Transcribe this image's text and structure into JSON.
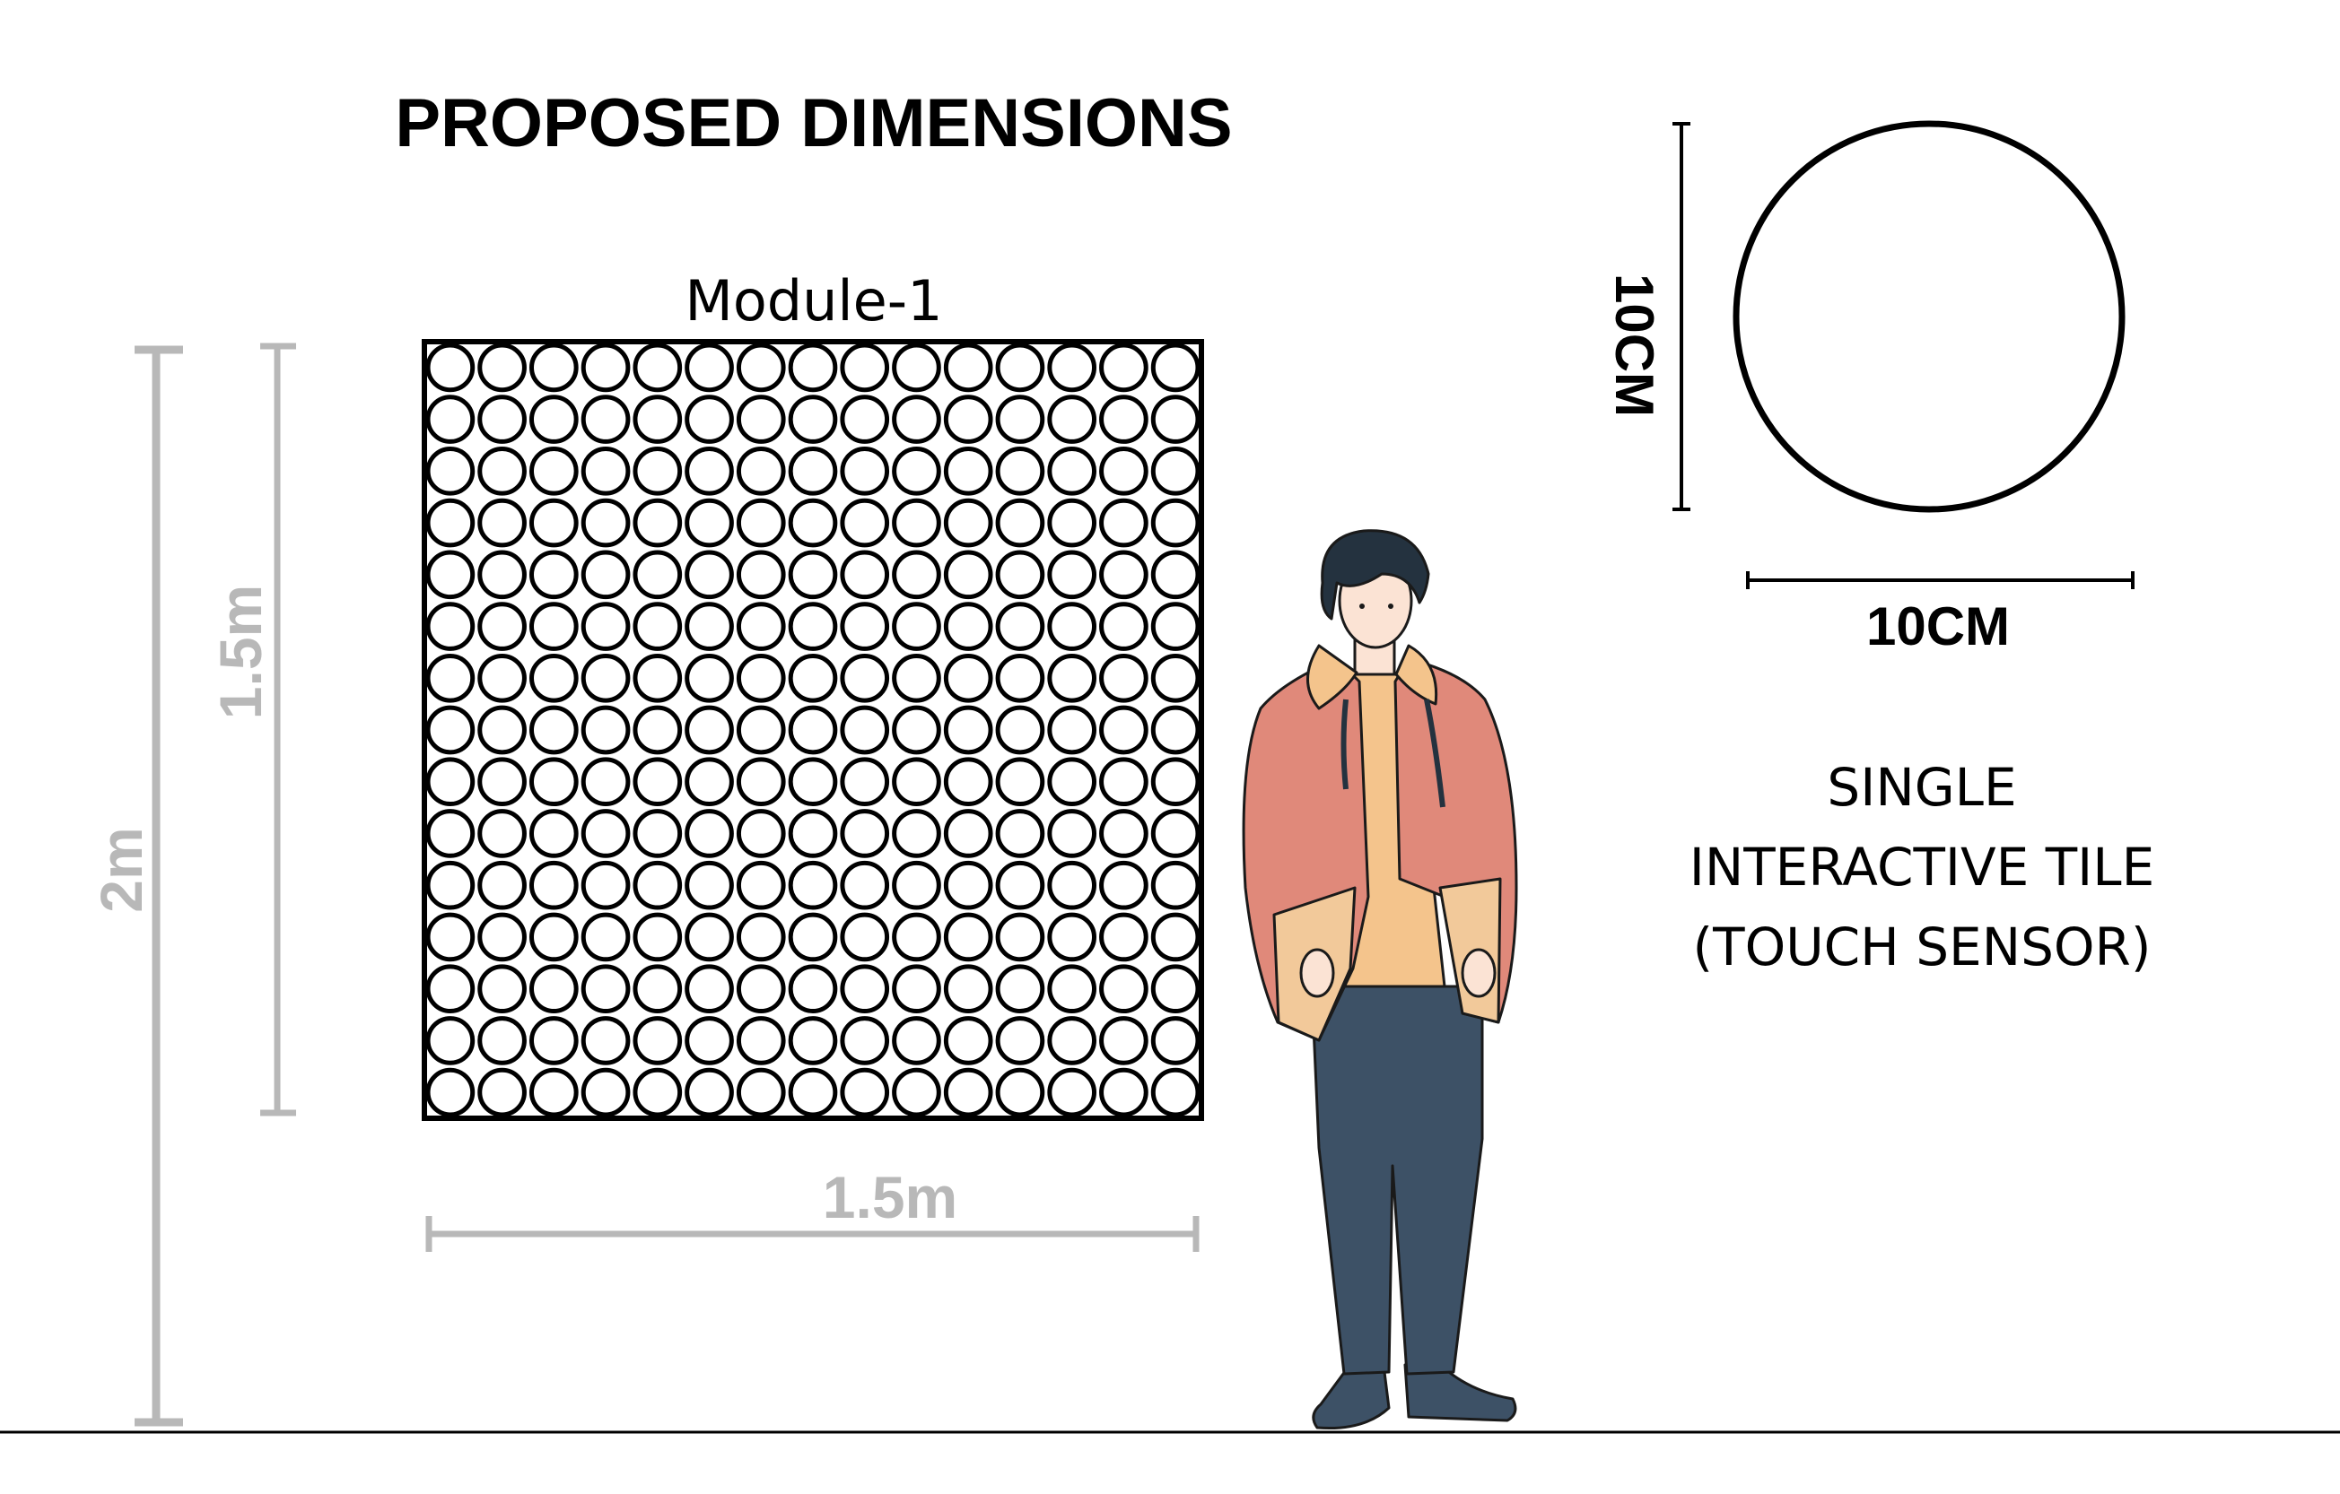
{
  "title": "PROPOSED DIMENSIONS",
  "module": {
    "label": "Module-1",
    "rows": 15,
    "cols": 15
  },
  "dimensions": {
    "total_height": "2m",
    "module_height": "1.5m",
    "module_width": "1.5m"
  },
  "tile": {
    "height_label": "10CM",
    "width_label": "10CM",
    "description": [
      "SINGLE",
      "INTERACTIVE TILE",
      "(TOUCH SENSOR)"
    ]
  },
  "colors": {
    "dimension_line": "#b8b8b8",
    "ink": "#000000",
    "jacket": "#e0897a",
    "jacket_panel": "#f2c99a",
    "shirt": "#f4c48c",
    "jeans": "#3d5166",
    "hair": "#24323f",
    "skin": "#fbe3d4"
  }
}
